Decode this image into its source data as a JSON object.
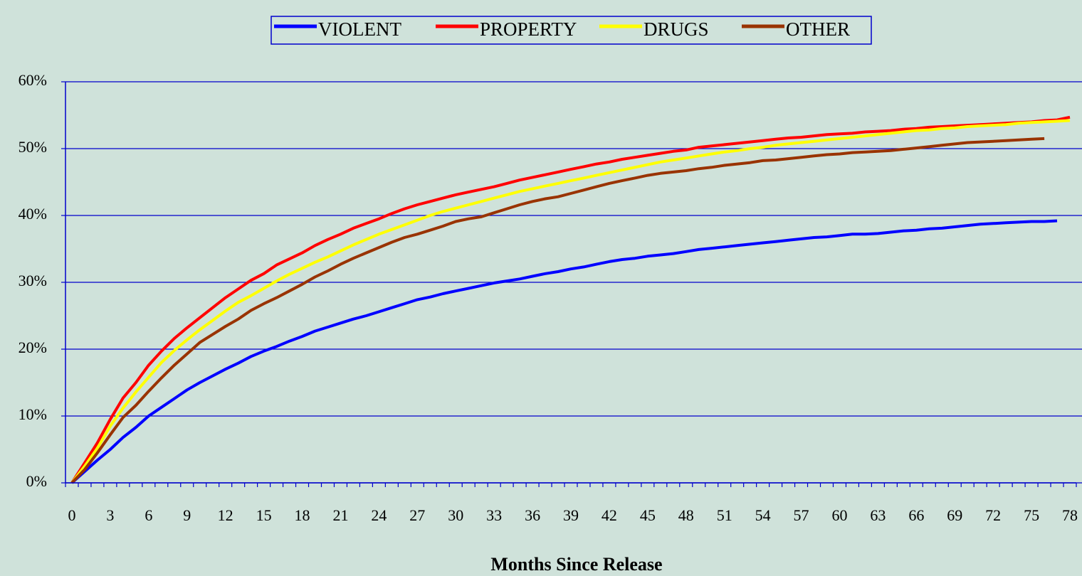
{
  "chart_data": {
    "type": "line",
    "x_label": "Months Since Release",
    "categories": [
      "0",
      null,
      null,
      "3",
      null,
      null,
      "6",
      null,
      null,
      "9",
      null,
      null,
      "12",
      null,
      null,
      "15",
      null,
      null,
      "18",
      null,
      null,
      "21",
      null,
      null,
      "24",
      null,
      null,
      "27",
      null,
      null,
      "30",
      null,
      null,
      "33",
      null,
      null,
      "36",
      null,
      null,
      "39",
      null,
      null,
      "42",
      null,
      null,
      "45",
      null,
      null,
      "48",
      null,
      null,
      "51",
      null,
      null,
      "54",
      null,
      null,
      "57",
      null,
      null,
      "60",
      null,
      null,
      "63",
      null,
      null,
      "66",
      null,
      null,
      "69",
      null,
      null,
      "72",
      null,
      null,
      "75",
      null,
      null,
      "78"
    ],
    "series": [
      {
        "name": "VIOLENT",
        "color": "#0000ff",
        "values": [
          0,
          1.7,
          3.4,
          5,
          6.8,
          8.3,
          10,
          11.3,
          12.6,
          13.9,
          15,
          16,
          17,
          17.9,
          18.9,
          19.7,
          20.4,
          21.2,
          21.9,
          22.7,
          23.3,
          23.9,
          24.5,
          25,
          25.6,
          26.2,
          26.8,
          27.4,
          27.8,
          28.3,
          28.7,
          29.1,
          29.5,
          29.9,
          30.2,
          30.5,
          30.9,
          31.3,
          31.6,
          32,
          32.3,
          32.7,
          33.1,
          33.4,
          33.6,
          33.9,
          34.1,
          34.3,
          34.6,
          34.9,
          35.1,
          35.3,
          35.5,
          35.7,
          35.9,
          36.1,
          36.3,
          36.5,
          36.7,
          36.8,
          37,
          37.2,
          37.2,
          37.3,
          37.5,
          37.7,
          37.8,
          38,
          38.1,
          38.3,
          38.5,
          38.7,
          38.8,
          38.9,
          39,
          39.1,
          39.1,
          39.2,
          null
        ]
      },
      {
        "name": "PROPERTY",
        "color": "#ff0000",
        "values": [
          0,
          3,
          6,
          9.5,
          12.7,
          15,
          17.6,
          19.7,
          21.6,
          23.2,
          24.7,
          26.2,
          27.7,
          29,
          30.3,
          31.3,
          32.6,
          33.5,
          34.4,
          35.5,
          36.4,
          37.2,
          38.1,
          38.8,
          39.5,
          40.3,
          41,
          41.6,
          42.1,
          42.6,
          43.1,
          43.5,
          43.9,
          44.3,
          44.8,
          45.3,
          45.7,
          46.1,
          46.5,
          46.9,
          47.3,
          47.7,
          48,
          48.4,
          48.7,
          49,
          49.3,
          49.6,
          49.8,
          50.2,
          50.4,
          50.6,
          50.8,
          51,
          51.2,
          51.4,
          51.6,
          51.7,
          51.9,
          52.1,
          52.2,
          52.3,
          52.5,
          52.6,
          52.7,
          52.9,
          53,
          53.2,
          53.3,
          53.4,
          53.5,
          53.6,
          53.7,
          53.8,
          53.9,
          54,
          54.2,
          54.3,
          54.7
        ]
      },
      {
        "name": "DRUGS",
        "color": "#ffff00",
        "values": [
          0,
          2.5,
          5.2,
          8.5,
          11.2,
          13.6,
          15.8,
          18,
          19.8,
          21.4,
          22.9,
          24.3,
          25.7,
          27,
          28,
          29.1,
          30.2,
          31.2,
          32.1,
          33,
          33.8,
          34.7,
          35.6,
          36.4,
          37.2,
          37.9,
          38.6,
          39.3,
          40,
          40.6,
          41.1,
          41.6,
          42.1,
          42.6,
          43.1,
          43.6,
          44,
          44.4,
          44.8,
          45.2,
          45.6,
          46,
          46.4,
          46.8,
          47.2,
          47.6,
          48,
          48.3,
          48.6,
          48.9,
          49.2,
          49.5,
          49.7,
          50,
          50.2,
          50.5,
          50.7,
          50.9,
          51.1,
          51.3,
          51.5,
          51.7,
          51.9,
          52.1,
          52.3,
          52.5,
          52.7,
          52.8,
          53,
          53.1,
          53.3,
          53.4,
          53.5,
          53.6,
          53.8,
          53.9,
          54,
          54.1,
          54.2
        ]
      },
      {
        "name": "OTHER",
        "color": "#993300",
        "values": [
          0,
          2,
          4.5,
          7.2,
          9.8,
          11.6,
          13.7,
          15.7,
          17.6,
          19.3,
          21,
          22.2,
          23.4,
          24.5,
          25.8,
          26.8,
          27.7,
          28.7,
          29.7,
          30.8,
          31.7,
          32.7,
          33.6,
          34.4,
          35.2,
          36,
          36.7,
          37.2,
          37.8,
          38.4,
          39.1,
          39.5,
          39.8,
          40.4,
          41,
          41.6,
          42.1,
          42.5,
          42.8,
          43.3,
          43.8,
          44.3,
          44.8,
          45.2,
          45.6,
          46,
          46.3,
          46.5,
          46.7,
          47,
          47.2,
          47.5,
          47.7,
          47.9,
          48.2,
          48.3,
          48.5,
          48.7,
          48.9,
          49.1,
          49.2,
          49.4,
          49.5,
          49.6,
          49.7,
          49.9,
          50.1,
          50.3,
          50.5,
          50.7,
          50.9,
          51,
          51.1,
          51.2,
          51.3,
          51.4,
          51.5,
          null,
          null
        ]
      }
    ],
    "ylim": [
      0,
      60
    ],
    "yticks": [
      {
        "value": 0,
        "label": "0%"
      },
      {
        "value": 10,
        "label": "10%"
      },
      {
        "value": 20,
        "label": "20%"
      },
      {
        "value": 30,
        "label": "30%"
      },
      {
        "value": 40,
        "label": "40%"
      },
      {
        "value": 50,
        "label": "50%"
      },
      {
        "value": 60,
        "label": "60%"
      }
    ],
    "grid": true,
    "legend": "top"
  }
}
